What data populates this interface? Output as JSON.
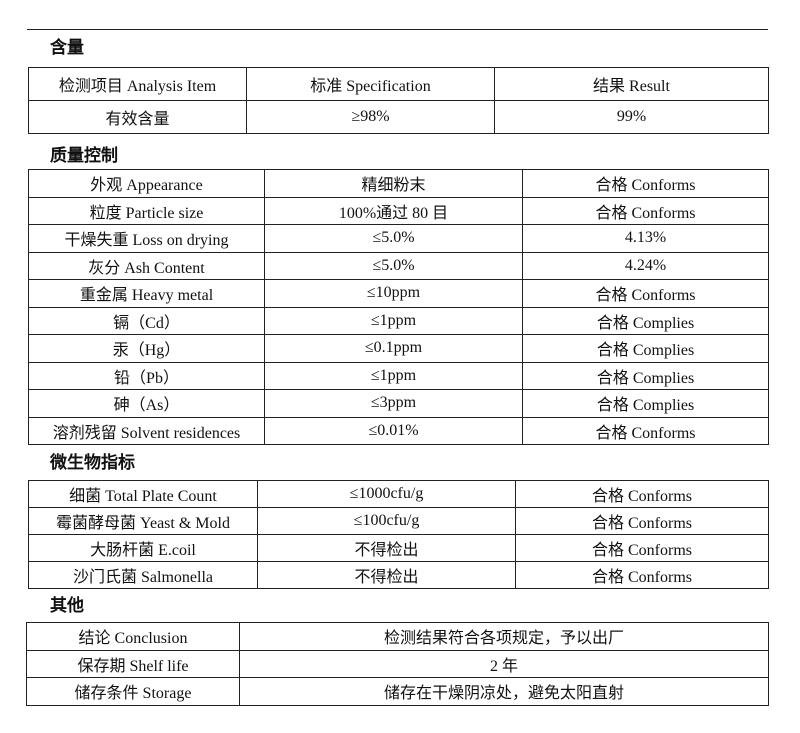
{
  "sections": [
    {
      "title": "含量",
      "rows": [
        [
          "检测项目  Analysis Item",
          "标准    Specification",
          "结果  Result"
        ],
        [
          "有效含量",
          "≥98%",
          "99%"
        ]
      ]
    },
    {
      "title": "质量控制",
      "rows": [
        [
          "外观 Appearance",
          "精细粉末",
          "合格 Conforms"
        ],
        [
          "粒度  Particle size",
          "100%通过 80 目",
          "合格 Conforms"
        ],
        [
          "干燥失重 Loss on drying",
          "≤5.0%",
          "4.13%"
        ],
        [
          "灰分 Ash Content",
          "≤5.0%",
          "4.24%"
        ],
        [
          "重金属  Heavy metal",
          "≤10ppm",
          "合格 Conforms"
        ],
        [
          "镉（Cd）",
          "≤1ppm",
          "合格 Complies"
        ],
        [
          "汞（Hg）",
          "≤0.1ppm",
          "合格 Complies"
        ],
        [
          "铅（Pb）",
          "≤1ppm",
          "合格 Complies"
        ],
        [
          "砷（As）",
          "≤3ppm",
          "合格 Complies"
        ],
        [
          "溶剂残留 Solvent residences",
          "≤0.01%",
          "合格 Conforms"
        ]
      ]
    },
    {
      "title": "微生物指标",
      "rows": [
        [
          "细菌  Total Plate Count",
          "≤1000cfu/g",
          "合格 Conforms"
        ],
        [
          "霉菌酵母菌  Yeast & Mold",
          "≤100cfu/g",
          "合格 Conforms"
        ],
        [
          "大肠杆菌    E.coil",
          "不得检出",
          "合格 Conforms"
        ],
        [
          "沙门氏菌    Salmonella",
          "不得检出",
          "合格 Conforms"
        ]
      ]
    },
    {
      "title": "其他",
      "rows": [
        [
          "结论  Conclusion",
          "检测结果符合各项规定，予以出厂"
        ],
        [
          "保存期  Shelf life",
          "2 年"
        ],
        [
          "储存条件 Storage",
          "储存在干燥阴凉处，避免太阳直射"
        ]
      ]
    }
  ]
}
